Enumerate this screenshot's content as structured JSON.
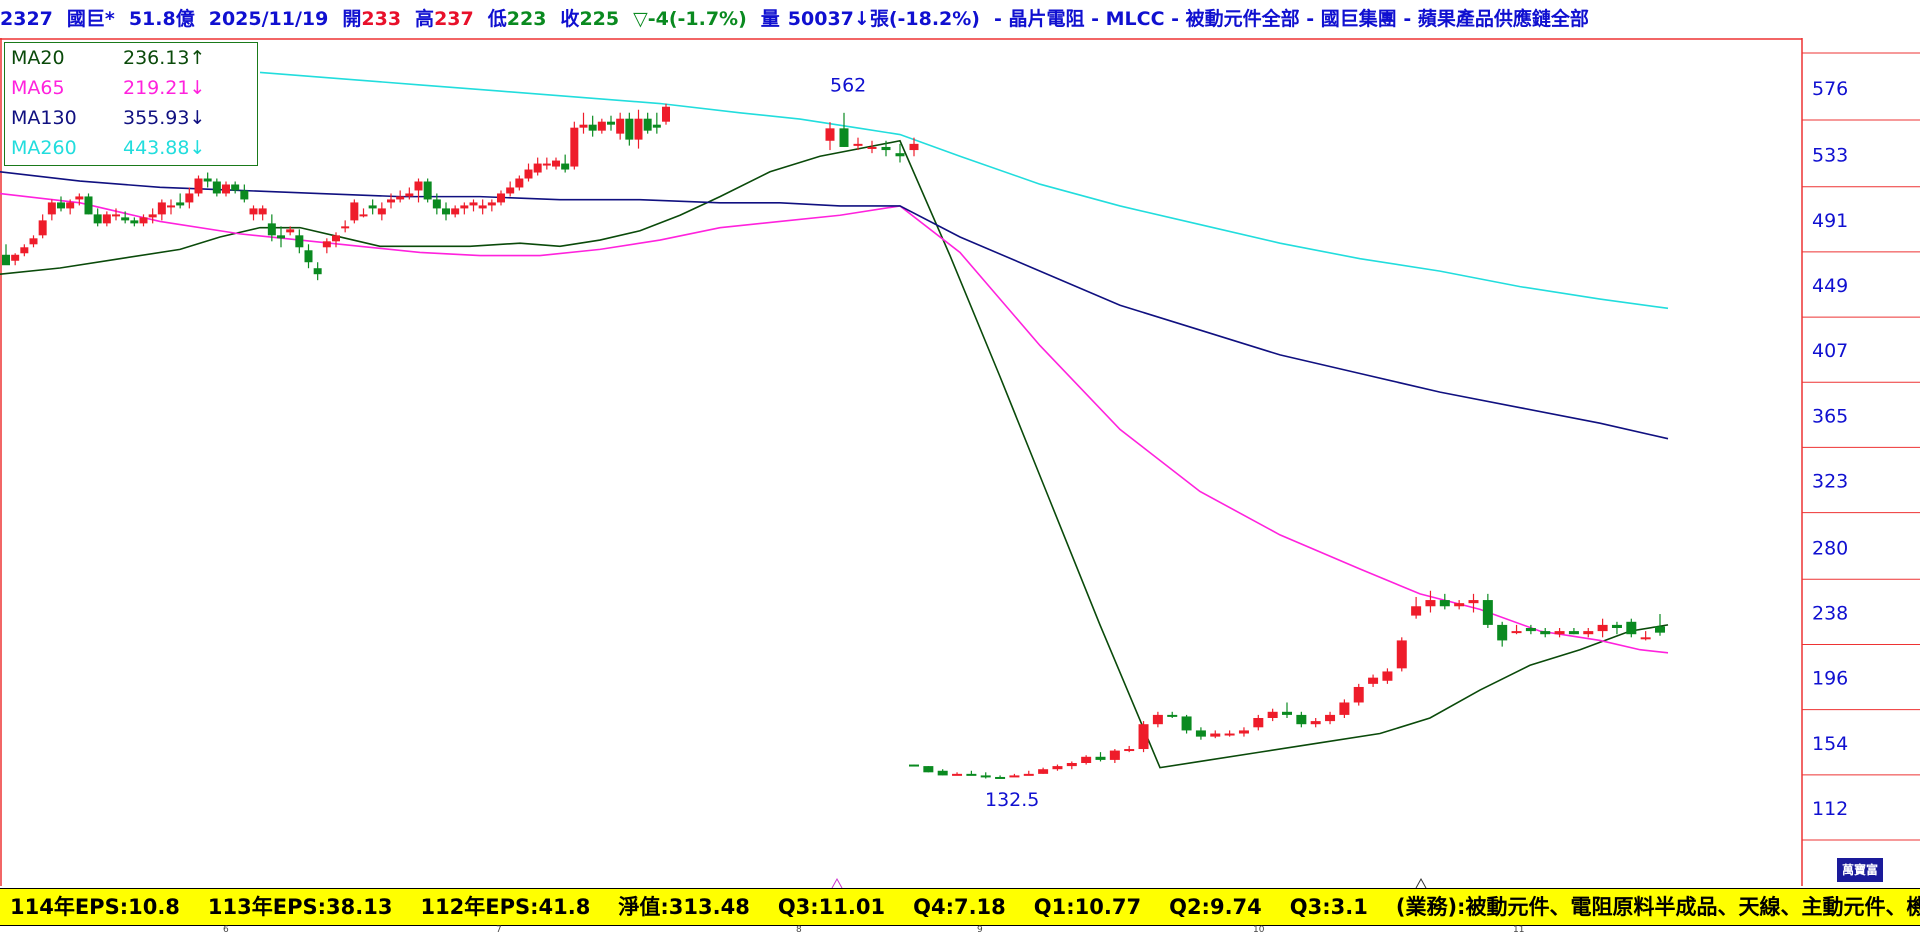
{
  "header": {
    "code": "2327",
    "name": "國巨*",
    "mktcap": "51.8億",
    "date": "2025/11/19",
    "open_label": "開",
    "open": "233",
    "high_label": "高",
    "high": "237",
    "low_label": "低",
    "low": "223",
    "close_label": "收",
    "close": "225",
    "change": "▽-4(-1.7%)",
    "volume_label": "量",
    "volume": "50037↓張(-18.2%)",
    "tags": "- 晶片電阻 - MLCC - 被動元件全部 - 國巨集團 - 蘋果產品供應鏈全部"
  },
  "legend": [
    {
      "name": "MA20",
      "value": "236.13↑",
      "color": "#0a4a0a"
    },
    {
      "name": "MA65",
      "value": "219.21↓",
      "color": "#ff22dd"
    },
    {
      "name": "MA130",
      "value": "355.93↓",
      "color": "#101080"
    },
    {
      "name": "MA260",
      "value": "443.88↓",
      "color": "#22dddd"
    }
  ],
  "footer": {
    "eps114": "114年EPS:10.8",
    "eps113": "113年EPS:38.13",
    "eps112": "112年EPS:41.8",
    "nav": "淨值:313.48",
    "q3a": "Q3:11.01",
    "q4": "Q4:7.18",
    "q1": "Q1:10.77",
    "q2": "Q2:9.74",
    "q3b": "Q3:3.1",
    "business": "(業務):被動元件、電阻原料半成品、天線、主動元件、機器設"
  },
  "brand": "萬寶富",
  "months": [
    "6",
    "7",
    "8",
    "9",
    "10",
    "11"
  ],
  "chart_data": {
    "type": "candlestick",
    "y_ticks": [
      576,
      533,
      491,
      449,
      407,
      365,
      323,
      280,
      238,
      196,
      154,
      112
    ],
    "ylim": [
      77,
      620
    ],
    "annotations": [
      {
        "text": "562",
        "value": 562
      },
      {
        "text": "132.5",
        "value": 132.5
      }
    ],
    "candles_colors": {
      "up": "#ee1c2a",
      "down": "#0a8a20"
    },
    "series": [
      {
        "name": "MA20",
        "color": "#0a4a0a"
      },
      {
        "name": "MA65",
        "color": "#ff22dd"
      },
      {
        "name": "MA130",
        "color": "#101080"
      },
      {
        "name": "MA260",
        "color": "#22dddd"
      }
    ]
  }
}
